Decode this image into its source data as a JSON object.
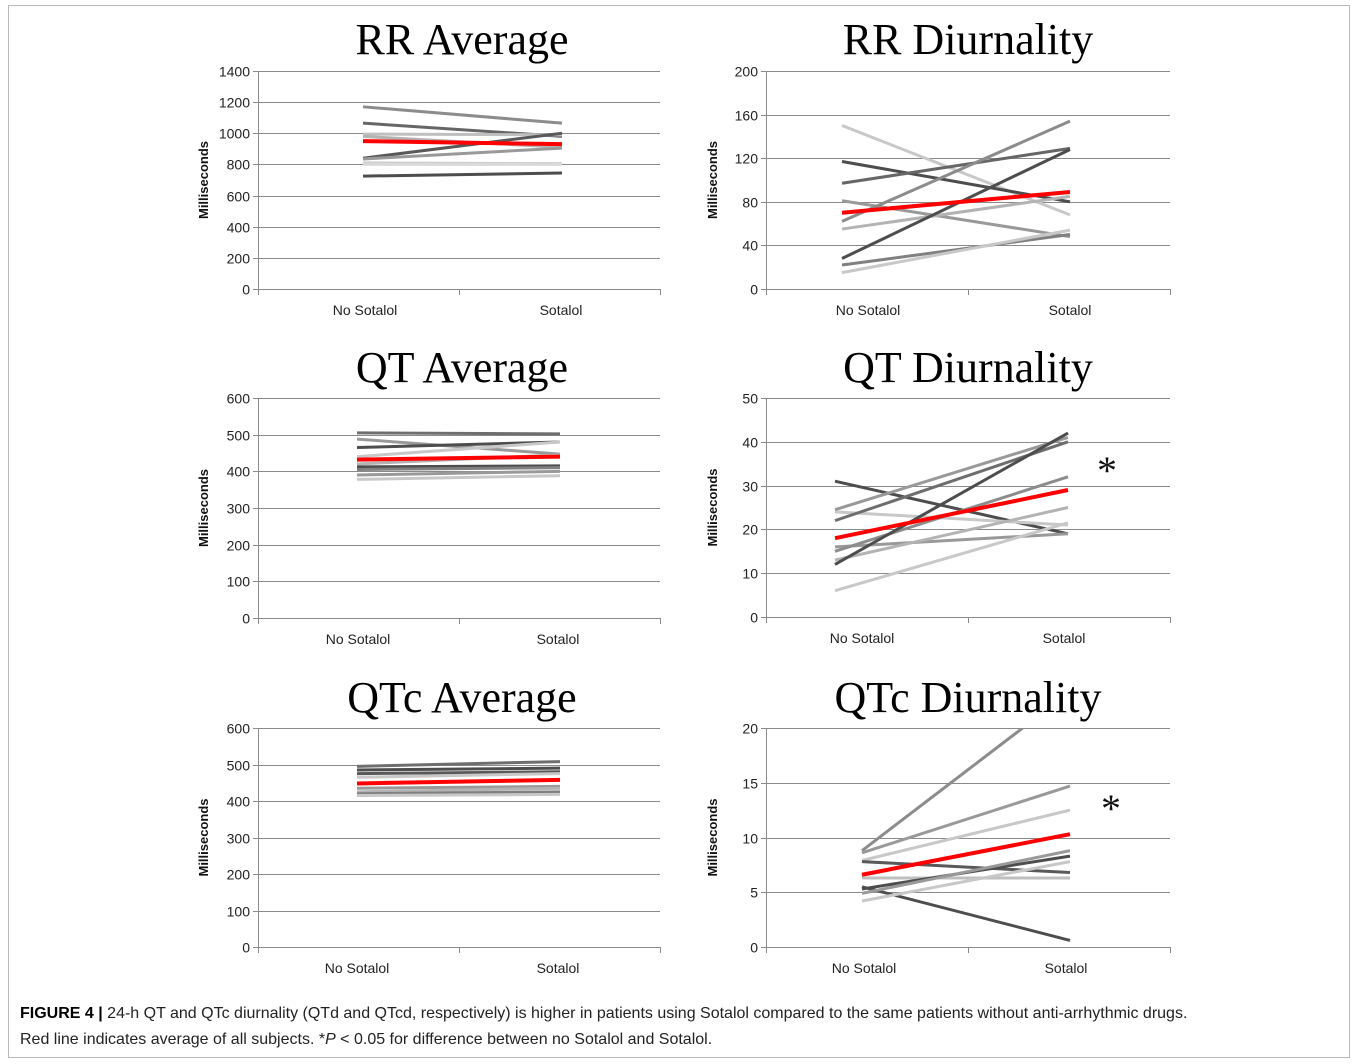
{
  "figure": {
    "caption": {
      "label": "FIGURE 4 |",
      "line1": " 24-h QT and QTc diurnality (QTd and QTcd, respectively) is higher in patients using Sotalol compared to the same patients without anti-arrhythmic drugs.",
      "line2_a": "Red line indicates average of all subjects. *",
      "line2_italic": "P",
      "line2_b": " < 0.05 for difference between no Sotalol and Sotalol."
    }
  },
  "chart_data": [
    {
      "type": "line",
      "title": "RR Average",
      "categories": [
        "No Sotalol",
        "Sotalol"
      ],
      "ylabel": "Milliseconds",
      "ylim": [
        0,
        1400
      ],
      "yticks": [
        0,
        200,
        400,
        600,
        800,
        1000,
        1200,
        1400
      ],
      "grid": true,
      "annotation": "",
      "series": [
        {
          "values": [
            1170,
            1065
          ],
          "color": "#8c8c8c"
        },
        {
          "values": [
            1065,
            980
          ],
          "color": "#666666"
        },
        {
          "values": [
            995,
            990
          ],
          "color": "#bfbfbf"
        },
        {
          "values": [
            980,
            910
          ],
          "color": "#b3b3b3"
        },
        {
          "values": [
            840,
            1000
          ],
          "color": "#595959"
        },
        {
          "values": [
            835,
            905
          ],
          "color": "#999999"
        },
        {
          "values": [
            810,
            805
          ],
          "color": "#cccccc"
        },
        {
          "values": [
            800,
            800
          ],
          "color": "#d9d9d9"
        },
        {
          "values": [
            725,
            745
          ],
          "color": "#4d4d4d"
        },
        {
          "values": [
            950,
            930
          ],
          "color": "#ff0000"
        }
      ]
    },
    {
      "type": "line",
      "title": "RR Diurnality",
      "categories": [
        "No Sotalol",
        "Sotalol"
      ],
      "ylabel": "Milliseconds",
      "ylim": [
        0,
        200
      ],
      "yticks": [
        0,
        40,
        80,
        120,
        160,
        200
      ],
      "grid": true,
      "annotation": "",
      "series": [
        {
          "values": [
            150,
            68
          ],
          "color": "#c8c8c8"
        },
        {
          "values": [
            117,
            80
          ],
          "color": "#4d4d4d"
        },
        {
          "values": [
            97,
            129
          ],
          "color": "#666666"
        },
        {
          "values": [
            81,
            48
          ],
          "color": "#999999"
        },
        {
          "values": [
            62,
            154
          ],
          "color": "#8c8c8c"
        },
        {
          "values": [
            55,
            85
          ],
          "color": "#b3b3b3"
        },
        {
          "values": [
            28,
            128
          ],
          "color": "#4d4d4d"
        },
        {
          "values": [
            22,
            50
          ],
          "color": "#808080"
        },
        {
          "values": [
            15,
            54
          ],
          "color": "#c8c8c8"
        },
        {
          "values": [
            70,
            89
          ],
          "color": "#ff0000"
        }
      ]
    },
    {
      "type": "line",
      "title": "QT Average",
      "categories": [
        "No Sotalol",
        "Sotalol"
      ],
      "ylabel": "Milliseconds",
      "ylim": [
        0,
        600
      ],
      "yticks": [
        0,
        100,
        200,
        300,
        400,
        500,
        600
      ],
      "grid": true,
      "annotation": "",
      "series": [
        {
          "values": [
            505,
            502
          ],
          "color": "#6e6e6e"
        },
        {
          "values": [
            488,
            447
          ],
          "color": "#999999"
        },
        {
          "values": [
            465,
            480
          ],
          "color": "#4d4d4d"
        },
        {
          "values": [
            440,
            480
          ],
          "color": "#c8c8c8"
        },
        {
          "values": [
            420,
            445
          ],
          "color": "#b3b3b3"
        },
        {
          "values": [
            412,
            415
          ],
          "color": "#4d4d4d"
        },
        {
          "values": [
            405,
            410
          ],
          "color": "#808080"
        },
        {
          "values": [
            390,
            400
          ],
          "color": "#999999"
        },
        {
          "values": [
            378,
            388
          ],
          "color": "#c8c8c8"
        },
        {
          "values": [
            432,
            440
          ],
          "color": "#ff0000"
        }
      ]
    },
    {
      "type": "line",
      "title": "QT Diurnality",
      "categories": [
        "No Sotalol",
        "Sotalol"
      ],
      "ylabel": "Milliseconds",
      "ylim": [
        0,
        50
      ],
      "yticks": [
        0,
        10,
        20,
        30,
        40,
        50
      ],
      "grid": true,
      "annotation": "*",
      "series": [
        {
          "values": [
            31,
            19
          ],
          "color": "#4d4d4d"
        },
        {
          "values": [
            24,
            21
          ],
          "color": "#c8c8c8"
        },
        {
          "values": [
            24.5,
            41
          ],
          "color": "#999999"
        },
        {
          "values": [
            22,
            40
          ],
          "color": "#6e6e6e"
        },
        {
          "values": [
            16,
            19
          ],
          "color": "#999999"
        },
        {
          "values": [
            15,
            32
          ],
          "color": "#8c8c8c"
        },
        {
          "values": [
            13,
            25
          ],
          "color": "#b3b3b3"
        },
        {
          "values": [
            12,
            42
          ],
          "color": "#4d4d4d"
        },
        {
          "values": [
            6,
            21.5
          ],
          "color": "#c8c8c8"
        },
        {
          "values": [
            18,
            29
          ],
          "color": "#ff0000"
        }
      ]
    },
    {
      "type": "line",
      "title": "QTc Average",
      "categories": [
        "No Sotalol",
        "Sotalol"
      ],
      "ylabel": "Milliseconds",
      "ylim": [
        0,
        600
      ],
      "yticks": [
        0,
        100,
        200,
        300,
        400,
        500,
        600
      ],
      "grid": true,
      "annotation": "",
      "series": [
        {
          "values": [
            495,
            508
          ],
          "color": "#6e6e6e"
        },
        {
          "values": [
            485,
            490
          ],
          "color": "#4d4d4d"
        },
        {
          "values": [
            475,
            480
          ],
          "color": "#595959"
        },
        {
          "values": [
            465,
            475
          ],
          "color": "#c8c8c8"
        },
        {
          "values": [
            435,
            440
          ],
          "color": "#999999"
        },
        {
          "values": [
            425,
            435
          ],
          "color": "#b3b3b3"
        },
        {
          "values": [
            420,
            425
          ],
          "color": "#808080"
        },
        {
          "values": [
            415,
            418
          ],
          "color": "#c8c8c8"
        },
        {
          "values": [
            448,
            458
          ],
          "color": "#ff0000"
        }
      ]
    },
    {
      "type": "line",
      "title": "QTc Diurnality",
      "categories": [
        "No Sotalol",
        "Sotalol"
      ],
      "ylabel": "Milliseconds",
      "ylim": [
        0,
        20
      ],
      "yticks": [
        0,
        5,
        10,
        15,
        20
      ],
      "grid": true,
      "annotation": "*",
      "series": [
        {
          "values": [
            8.8,
            23.3
          ],
          "color": "#8c8c8c"
        },
        {
          "values": [
            8.6,
            14.7
          ],
          "color": "#999999"
        },
        {
          "values": [
            7.9,
            12.5
          ],
          "color": "#c8c8c8"
        },
        {
          "values": [
            7.8,
            6.8
          ],
          "color": "#595959"
        },
        {
          "values": [
            6.3,
            6.3
          ],
          "color": "#bfbfbf"
        },
        {
          "values": [
            5.5,
            0.6
          ],
          "color": "#4d4d4d"
        },
        {
          "values": [
            5.3,
            8.3
          ],
          "color": "#4d4d4d"
        },
        {
          "values": [
            4.9,
            8.8
          ],
          "color": "#999999"
        },
        {
          "values": [
            4.2,
            7.8
          ],
          "color": "#c8c8c8"
        },
        {
          "values": [
            6.6,
            10.3
          ],
          "color": "#ff0000"
        }
      ]
    }
  ]
}
